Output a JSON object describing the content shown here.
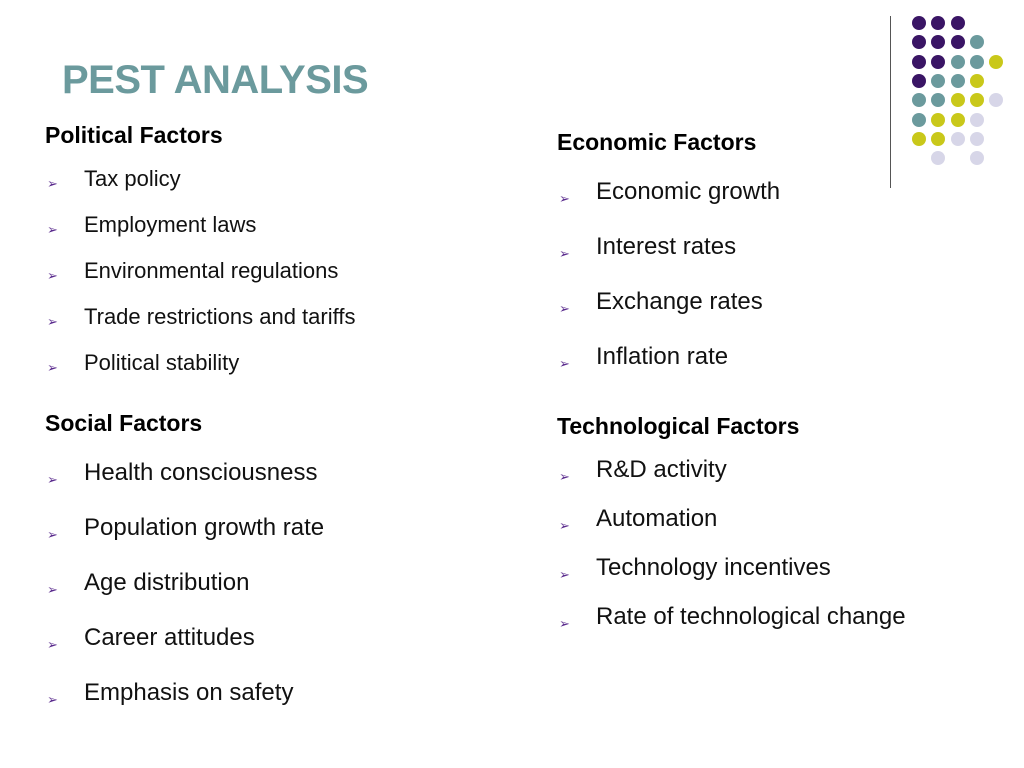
{
  "slide": {
    "title": "PEST ANALYSIS",
    "bullet_glyph": "➢",
    "accent_colors": {
      "title": "#6b9a9d",
      "dark_purple": "#3a1565",
      "teal": "#6b9a9d",
      "lime": "#c9c81a",
      "lavender": "#d7d6e8",
      "bullet": "#5b2c8e"
    }
  },
  "political": {
    "heading": "Political Factors",
    "items": [
      "Tax policy",
      "Employment laws",
      "Environmental regulations",
      "Trade restrictions and tariffs",
      "Political stability"
    ]
  },
  "economic": {
    "heading": "Economic Factors",
    "items": [
      "Economic growth",
      "Interest rates",
      "Exchange rates",
      "Inflation rate"
    ]
  },
  "social": {
    "heading": "Social Factors",
    "items": [
      "Health consciousness",
      "Population growth rate",
      "Age distribution",
      "Career attitudes",
      "Emphasis on safety"
    ]
  },
  "technological": {
    "heading": "Technological Factors",
    "items": [
      "R&D activity",
      "Automation",
      "Technology incentives",
      "Rate of technological change"
    ]
  },
  "decoration": {
    "dot_grid": [
      [
        "dark_purple",
        "dark_purple",
        "dark_purple",
        null,
        null
      ],
      [
        "dark_purple",
        "dark_purple",
        "dark_purple",
        "teal",
        null
      ],
      [
        "dark_purple",
        "dark_purple",
        "teal",
        "teal",
        "lime"
      ],
      [
        "dark_purple",
        "teal",
        "teal",
        "lime",
        null
      ],
      [
        "teal",
        "teal",
        "lime",
        "lime",
        "lavender"
      ],
      [
        "teal",
        "lime",
        "lime",
        "lavender",
        null
      ],
      [
        "lime",
        "lime",
        "lavender",
        "lavender",
        null
      ],
      [
        null,
        "lavender",
        null,
        "lavender",
        null
      ]
    ]
  }
}
